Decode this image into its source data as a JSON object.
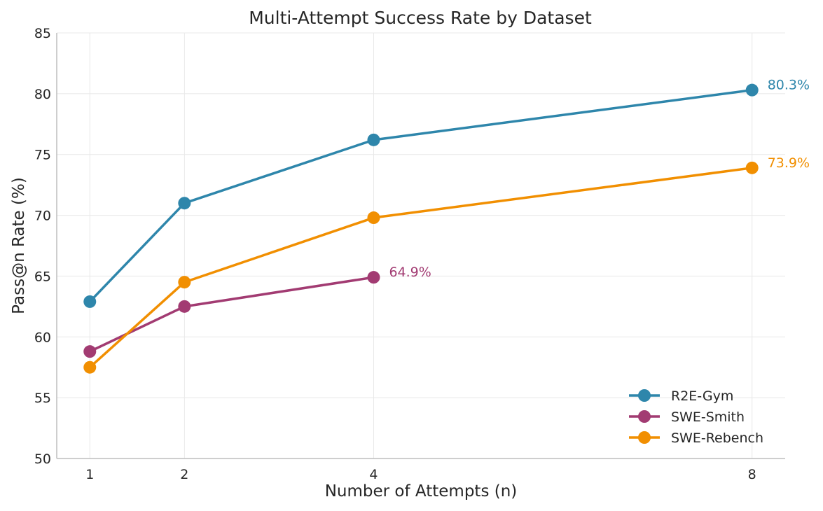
{
  "chart_data": {
    "type": "line",
    "title": "Multi-Attempt Success Rate by Dataset",
    "xlabel": "Number of Attempts (n)",
    "ylabel": "Pass@n Rate (%)",
    "xlim": [
      0.65,
      8.35
    ],
    "ylim": [
      50,
      85
    ],
    "x_ticks": [
      1,
      2,
      4,
      8
    ],
    "y_ticks": [
      50,
      55,
      60,
      65,
      70,
      75,
      80,
      85
    ],
    "grid": true,
    "legend_position": "bottom-right",
    "series": [
      {
        "name": "R2E-Gym",
        "color": "#2e86ab",
        "x": [
          1,
          2,
          4,
          8
        ],
        "values": [
          62.9,
          71.0,
          76.2,
          80.3
        ],
        "end_label": "80.3%"
      },
      {
        "name": "SWE-Smith",
        "color": "#a23b72",
        "x": [
          1,
          2,
          4
        ],
        "values": [
          58.8,
          62.5,
          64.9
        ],
        "end_label": "64.9%"
      },
      {
        "name": "SWE-Rebench",
        "color": "#f18f01",
        "x": [
          1,
          2,
          4,
          8
        ],
        "values": [
          57.5,
          64.5,
          69.8,
          73.9
        ],
        "end_label": "73.9%"
      }
    ]
  }
}
